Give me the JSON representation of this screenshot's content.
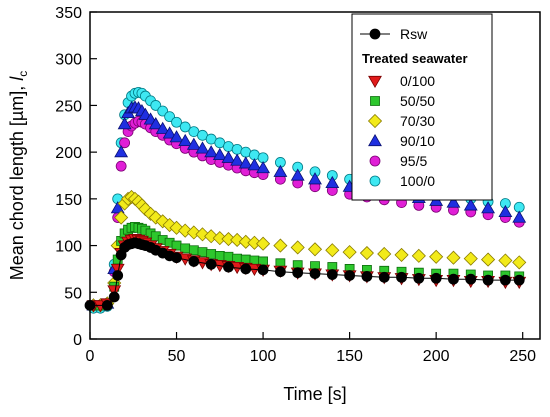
{
  "chart_data": {
    "type": "scatter",
    "xlabel": "Time [s]",
    "ylabel_main": "Mean chord length [µm], ",
    "ylabel_symbol": "l",
    "ylabel_subscript": "c",
    "xlim": [
      0,
      260
    ],
    "ylim": [
      0,
      350
    ],
    "xticks": [
      0,
      50,
      100,
      150,
      200,
      250
    ],
    "yticks": [
      0,
      50,
      100,
      150,
      200,
      250,
      300,
      350
    ],
    "grid": false,
    "legend_position": "top-right",
    "legend_title": "Treated seawater",
    "series": [
      {
        "name": "Rsw",
        "marker": "circle",
        "color": "#000000",
        "stroke": "#000000",
        "connect_line": true,
        "points": [
          [
            0,
            36
          ],
          [
            10,
            36
          ],
          [
            14,
            45
          ],
          [
            16,
            68
          ],
          [
            18,
            90
          ],
          [
            20,
            98
          ],
          [
            22,
            101
          ],
          [
            24,
            102
          ],
          [
            26,
            103
          ],
          [
            28,
            102
          ],
          [
            30,
            101
          ],
          [
            32,
            100
          ],
          [
            35,
            98
          ],
          [
            38,
            95
          ],
          [
            42,
            92
          ],
          [
            46,
            89
          ],
          [
            50,
            87
          ],
          [
            60,
            83
          ],
          [
            70,
            80
          ],
          [
            80,
            77
          ],
          [
            90,
            75
          ],
          [
            100,
            74
          ],
          [
            110,
            72
          ],
          [
            120,
            71
          ],
          [
            130,
            70
          ],
          [
            140,
            69
          ],
          [
            150,
            68
          ],
          [
            160,
            67
          ],
          [
            170,
            66
          ],
          [
            180,
            66
          ],
          [
            190,
            65
          ],
          [
            200,
            65
          ],
          [
            210,
            64
          ],
          [
            220,
            64
          ],
          [
            230,
            63
          ],
          [
            240,
            63
          ],
          [
            248,
            63
          ]
        ]
      },
      {
        "name": "0/100",
        "marker": "triangle-down",
        "color": "#e01b1b",
        "stroke": "#7a0000",
        "connect_line": false,
        "points": [
          [
            2,
            36
          ],
          [
            6,
            36
          ],
          [
            10,
            38
          ],
          [
            14,
            52
          ],
          [
            16,
            75
          ],
          [
            18,
            92
          ],
          [
            20,
            100
          ],
          [
            22,
            104
          ],
          [
            24,
            106
          ],
          [
            26,
            107
          ],
          [
            28,
            106
          ],
          [
            30,
            105
          ],
          [
            32,
            103
          ],
          [
            35,
            100
          ],
          [
            38,
            97
          ],
          [
            42,
            94
          ],
          [
            46,
            91
          ],
          [
            50,
            88
          ],
          [
            55,
            86
          ],
          [
            60,
            84
          ],
          [
            65,
            82
          ],
          [
            70,
            80
          ],
          [
            75,
            79
          ],
          [
            80,
            78
          ],
          [
            85,
            77
          ],
          [
            90,
            76
          ],
          [
            95,
            75
          ],
          [
            100,
            74
          ],
          [
            110,
            73
          ],
          [
            120,
            71
          ],
          [
            130,
            70
          ],
          [
            140,
            69
          ],
          [
            150,
            68
          ],
          [
            160,
            67
          ],
          [
            170,
            66
          ],
          [
            180,
            65
          ],
          [
            190,
            64
          ],
          [
            200,
            63
          ],
          [
            210,
            63
          ],
          [
            220,
            62
          ],
          [
            230,
            62
          ],
          [
            240,
            61
          ],
          [
            248,
            61
          ]
        ]
      },
      {
        "name": "50/50",
        "marker": "square",
        "color": "#2dc72d",
        "stroke": "#0b6b0b",
        "connect_line": false,
        "points": [
          [
            2,
            36
          ],
          [
            6,
            36
          ],
          [
            10,
            38
          ],
          [
            14,
            56
          ],
          [
            16,
            85
          ],
          [
            18,
            105
          ],
          [
            20,
            113
          ],
          [
            22,
            117
          ],
          [
            24,
            119
          ],
          [
            26,
            120
          ],
          [
            28,
            119
          ],
          [
            30,
            118
          ],
          [
            32,
            116
          ],
          [
            35,
            113
          ],
          [
            38,
            110
          ],
          [
            42,
            106
          ],
          [
            46,
            103
          ],
          [
            50,
            100
          ],
          [
            55,
            97
          ],
          [
            60,
            95
          ],
          [
            65,
            93
          ],
          [
            70,
            91
          ],
          [
            75,
            89
          ],
          [
            80,
            88
          ],
          [
            85,
            86
          ],
          [
            90,
            85
          ],
          [
            95,
            84
          ],
          [
            100,
            83
          ],
          [
            110,
            81
          ],
          [
            120,
            79
          ],
          [
            130,
            78
          ],
          [
            140,
            77
          ],
          [
            150,
            75
          ],
          [
            160,
            74
          ],
          [
            170,
            73
          ],
          [
            180,
            72
          ],
          [
            190,
            71
          ],
          [
            200,
            70
          ],
          [
            210,
            70
          ],
          [
            220,
            69
          ],
          [
            230,
            68
          ],
          [
            240,
            68
          ],
          [
            248,
            67
          ]
        ]
      },
      {
        "name": "70/30",
        "marker": "diamond",
        "color": "#f2ea1a",
        "stroke": "#8a7c00",
        "connect_line": false,
        "points": [
          [
            2,
            36
          ],
          [
            6,
            36
          ],
          [
            10,
            38
          ],
          [
            14,
            60
          ],
          [
            16,
            100
          ],
          [
            18,
            130
          ],
          [
            20,
            145
          ],
          [
            22,
            150
          ],
          [
            24,
            152
          ],
          [
            26,
            150
          ],
          [
            28,
            147
          ],
          [
            30,
            143
          ],
          [
            32,
            139
          ],
          [
            35,
            134
          ],
          [
            38,
            130
          ],
          [
            42,
            126
          ],
          [
            46,
            122
          ],
          [
            50,
            119
          ],
          [
            55,
            116
          ],
          [
            60,
            114
          ],
          [
            65,
            112
          ],
          [
            70,
            110
          ],
          [
            75,
            108
          ],
          [
            80,
            107
          ],
          [
            85,
            106
          ],
          [
            90,
            104
          ],
          [
            95,
            103
          ],
          [
            100,
            102
          ],
          [
            110,
            100
          ],
          [
            120,
            98
          ],
          [
            130,
            96
          ],
          [
            140,
            95
          ],
          [
            150,
            93
          ],
          [
            160,
            92
          ],
          [
            170,
            91
          ],
          [
            180,
            90
          ],
          [
            190,
            89
          ],
          [
            200,
            88
          ],
          [
            210,
            87
          ],
          [
            220,
            86
          ],
          [
            230,
            85
          ],
          [
            240,
            84
          ],
          [
            248,
            82
          ]
        ]
      },
      {
        "name": "90/10",
        "marker": "triangle-up",
        "color": "#1f2fe0",
        "stroke": "#0a1173",
        "connect_line": false,
        "points": [
          [
            2,
            36
          ],
          [
            6,
            36
          ],
          [
            10,
            38
          ],
          [
            14,
            75
          ],
          [
            16,
            140
          ],
          [
            18,
            200
          ],
          [
            20,
            230
          ],
          [
            22,
            242
          ],
          [
            24,
            247
          ],
          [
            26,
            248
          ],
          [
            28,
            247
          ],
          [
            30,
            244
          ],
          [
            32,
            240
          ],
          [
            35,
            235
          ],
          [
            38,
            230
          ],
          [
            42,
            225
          ],
          [
            46,
            220
          ],
          [
            50,
            216
          ],
          [
            55,
            212
          ],
          [
            60,
            208
          ],
          [
            65,
            204
          ],
          [
            70,
            200
          ],
          [
            75,
            197
          ],
          [
            80,
            194
          ],
          [
            85,
            191
          ],
          [
            90,
            188
          ],
          [
            95,
            186
          ],
          [
            100,
            183
          ],
          [
            110,
            179
          ],
          [
            120,
            175
          ],
          [
            130,
            171
          ],
          [
            140,
            167
          ],
          [
            150,
            163
          ],
          [
            160,
            160
          ],
          [
            170,
            157
          ],
          [
            180,
            154
          ],
          [
            190,
            151
          ],
          [
            200,
            148
          ],
          [
            210,
            146
          ],
          [
            220,
            143
          ],
          [
            230,
            140
          ],
          [
            240,
            136
          ],
          [
            248,
            130
          ]
        ]
      },
      {
        "name": "95/5",
        "marker": "circle",
        "color": "#e01fd6",
        "stroke": "#7a0073",
        "connect_line": false,
        "points": [
          [
            2,
            36
          ],
          [
            6,
            36
          ],
          [
            10,
            38
          ],
          [
            14,
            72
          ],
          [
            16,
            130
          ],
          [
            18,
            185
          ],
          [
            20,
            210
          ],
          [
            22,
            222
          ],
          [
            24,
            228
          ],
          [
            26,
            231
          ],
          [
            28,
            233
          ],
          [
            30,
            232
          ],
          [
            32,
            230
          ],
          [
            35,
            226
          ],
          [
            38,
            222
          ],
          [
            42,
            218
          ],
          [
            46,
            213
          ],
          [
            50,
            209
          ],
          [
            55,
            204
          ],
          [
            60,
            200
          ],
          [
            65,
            196
          ],
          [
            70,
            192
          ],
          [
            75,
            189
          ],
          [
            80,
            186
          ],
          [
            85,
            183
          ],
          [
            90,
            180
          ],
          [
            95,
            178
          ],
          [
            100,
            176
          ],
          [
            110,
            171
          ],
          [
            120,
            167
          ],
          [
            130,
            163
          ],
          [
            140,
            159
          ],
          [
            150,
            155
          ],
          [
            160,
            152
          ],
          [
            170,
            149
          ],
          [
            180,
            146
          ],
          [
            190,
            143
          ],
          [
            200,
            141
          ],
          [
            210,
            138
          ],
          [
            220,
            136
          ],
          [
            230,
            133
          ],
          [
            240,
            130
          ],
          [
            248,
            125
          ]
        ]
      },
      {
        "name": "100/0",
        "marker": "circle",
        "color": "#3ee8f2",
        "stroke": "#007a85",
        "connect_line": false,
        "points": [
          [
            2,
            33
          ],
          [
            6,
            33
          ],
          [
            10,
            35
          ],
          [
            14,
            80
          ],
          [
            16,
            150
          ],
          [
            18,
            210
          ],
          [
            20,
            240
          ],
          [
            22,
            253
          ],
          [
            24,
            260
          ],
          [
            26,
            263
          ],
          [
            28,
            264
          ],
          [
            30,
            263
          ],
          [
            32,
            260
          ],
          [
            35,
            255
          ],
          [
            38,
            250
          ],
          [
            42,
            244
          ],
          [
            46,
            238
          ],
          [
            50,
            232
          ],
          [
            55,
            227
          ],
          [
            60,
            222
          ],
          [
            65,
            218
          ],
          [
            70,
            214
          ],
          [
            75,
            210
          ],
          [
            80,
            206
          ],
          [
            85,
            203
          ],
          [
            90,
            200
          ],
          [
            95,
            197
          ],
          [
            100,
            194
          ],
          [
            110,
            189
          ],
          [
            120,
            184
          ],
          [
            130,
            179
          ],
          [
            140,
            175
          ],
          [
            150,
            171
          ],
          [
            160,
            167
          ],
          [
            170,
            164
          ],
          [
            180,
            161
          ],
          [
            190,
            158
          ],
          [
            200,
            156
          ],
          [
            210,
            153
          ],
          [
            220,
            150
          ],
          [
            230,
            147
          ],
          [
            240,
            145
          ],
          [
            248,
            141
          ]
        ]
      }
    ]
  }
}
